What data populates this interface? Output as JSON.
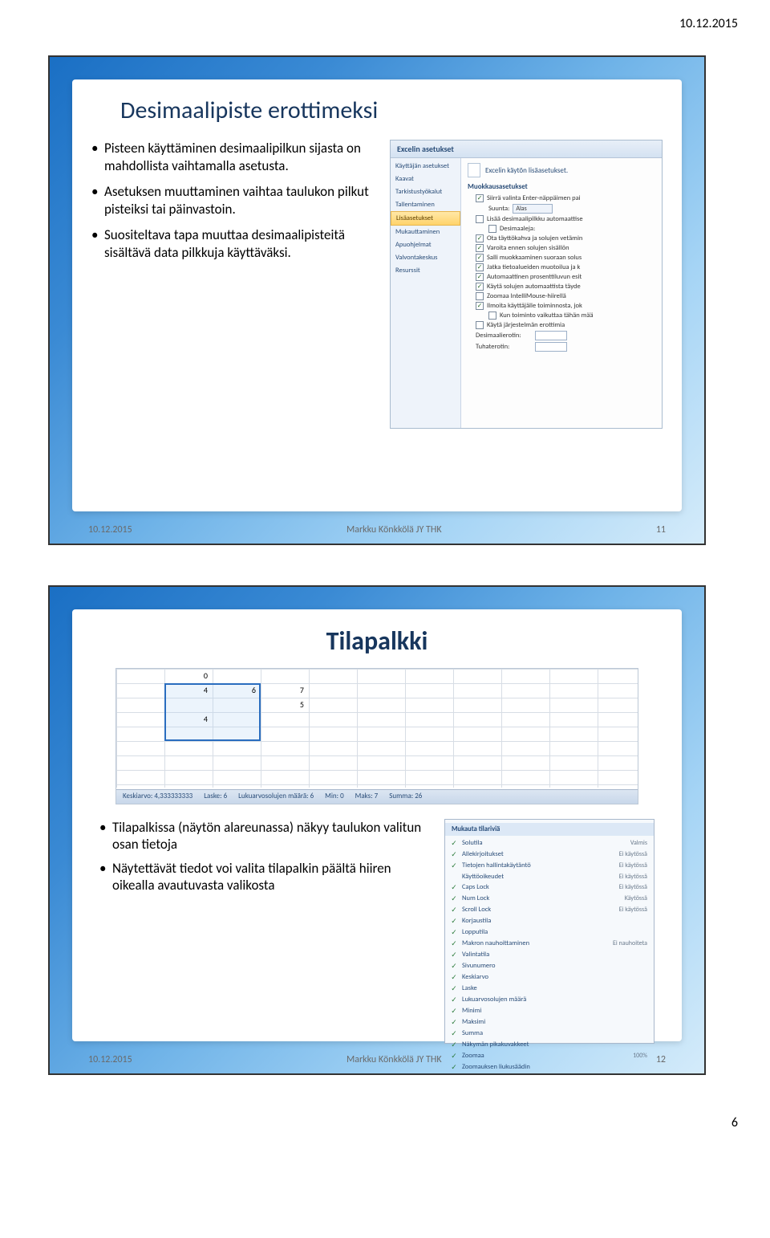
{
  "page": {
    "header_date": "10.12.2015",
    "page_number": "6"
  },
  "slide1": {
    "title": "Desimaalipiste erottimeksi",
    "bullets": [
      "Pisteen käyttäminen desimaalipilkun sijasta on mahdollista vaihtamalla asetusta.",
      "Asetuksen muuttaminen vaihtaa taulukon pilkut pisteiksi tai päinvastoin.",
      "Suositeltava tapa muuttaa desimaalipisteitä sisältävä data pilkkuja käyttäväksi."
    ],
    "footer_date": "10.12.2015",
    "footer_center": "Markku Könkkölä JY THK",
    "footer_page": "11",
    "dialog": {
      "title": "Excelin asetukset",
      "sidebar": [
        "Käyttäjän asetukset",
        "Kaavat",
        "Tarkistustyökalut",
        "Tallentaminen",
        "Lisäasetukset",
        "Mukauttaminen",
        "Apuohjelmat",
        "Valvontakeskus",
        "Resurssit"
      ],
      "selected_index": 4,
      "header_link": "Excelin käytön lisäasetukset.",
      "section": "Muokkausasetukset",
      "direction_label": "Suunta:",
      "direction_value": "Alas",
      "options": [
        {
          "checked": true,
          "label": "Siirrä valinta Enter-näppäimen pai"
        },
        {
          "checked": false,
          "label": "Lisää desimaalipilkku automaattise"
        },
        {
          "checked": false,
          "label": "Desimaaleja:",
          "indent": true
        },
        {
          "checked": true,
          "label": "Ota täyttökahva ja solujen vetämin"
        },
        {
          "checked": true,
          "label": "Varoita ennen solujen sisällön"
        },
        {
          "checked": true,
          "label": "Salli muokkaaminen suoraan solus"
        },
        {
          "checked": true,
          "label": "Jatka tietoalueiden muotoilua ja k"
        },
        {
          "checked": true,
          "label": "Automaattinen prosenttiluvun esit"
        },
        {
          "checked": true,
          "label": "Käytä solujen automaattista täyde"
        },
        {
          "checked": false,
          "label": "Zoomaa IntelliMouse-hiirellä"
        },
        {
          "checked": true,
          "label": "Ilmoita käyttäjälle toiminnosta, jok"
        },
        {
          "checked": false,
          "label": "Kun toiminto vaikuttaa tähän mää",
          "indent": true
        },
        {
          "checked": false,
          "label": "Käytä järjestelmän erottimia"
        }
      ],
      "decimal_label": "Desimaalierotin:",
      "thousand_label": "Tuhaterotin:"
    }
  },
  "slide2": {
    "title": "Tilapalkki",
    "bullets": [
      "Tilapalkissa (näytön alareunassa) näkyy taulukon valitun osan tietoja",
      "Näytettävät tiedot voi valita tilapalkin päältä hiiren oikealla avautuvasta valikosta"
    ],
    "footer_date": "10.12.2015",
    "footer_center": "Markku Könkkölä JY THK",
    "footer_page": "12",
    "spreadsheet": {
      "cells": [
        {
          "row": 0,
          "col": 1,
          "val": "0"
        },
        {
          "row": 1,
          "col": 1,
          "val": "4"
        },
        {
          "row": 1,
          "col": 2,
          "val": "6"
        },
        {
          "row": 1,
          "col": 3,
          "val": "7"
        },
        {
          "row": 2,
          "col": 3,
          "val": "5"
        },
        {
          "row": 3,
          "col": 1,
          "val": "4"
        }
      ],
      "status_items": [
        {
          "k": "Keskiarvo:",
          "v": "4,333333333"
        },
        {
          "k": "Laske:",
          "v": "6"
        },
        {
          "k": "Lukuarvosolujen määrä:",
          "v": "6"
        },
        {
          "k": "Min:",
          "v": "0"
        },
        {
          "k": "Maks:",
          "v": "7"
        },
        {
          "k": "Summa:",
          "v": "26"
        }
      ]
    },
    "menu": {
      "header": "Mukauta tilariviä",
      "items": [
        {
          "ck": true,
          "label": "Solutila",
          "val": "Valmis"
        },
        {
          "ck": true,
          "label": "Allekirjoitukset",
          "val": "Ei käytössä"
        },
        {
          "ck": true,
          "label": "Tietojen hallintakäytäntö",
          "val": "Ei käytössä"
        },
        {
          "ck": false,
          "label": "Käyttöoikeudet",
          "val": "Ei käytössä"
        },
        {
          "ck": true,
          "label": "Caps Lock",
          "val": "Ei käytössä"
        },
        {
          "ck": true,
          "label": "Num Lock",
          "val": "Käytössä"
        },
        {
          "ck": true,
          "label": "Scroll Lock",
          "val": "Ei käytössä"
        },
        {
          "ck": true,
          "label": "Korjaustila",
          "val": ""
        },
        {
          "ck": true,
          "label": "Lopputila",
          "val": ""
        },
        {
          "ck": true,
          "label": "Makron nauhoittaminen",
          "val": "Ei nauhoiteta"
        },
        {
          "ck": true,
          "label": "Valintatila",
          "val": ""
        },
        {
          "ck": true,
          "label": "Sivunumero",
          "val": ""
        },
        {
          "ck": true,
          "label": "Keskiarvo",
          "val": ""
        },
        {
          "ck": true,
          "label": "Laske",
          "val": ""
        },
        {
          "ck": true,
          "label": "Lukuarvosolujen määrä",
          "val": ""
        },
        {
          "ck": true,
          "label": "Minimi",
          "val": ""
        },
        {
          "ck": true,
          "label": "Maksimi",
          "val": ""
        },
        {
          "ck": true,
          "label": "Summa",
          "val": ""
        },
        {
          "ck": true,
          "label": "Näkymän pikakuvakkeet",
          "val": ""
        },
        {
          "ck": true,
          "label": "Zoomaa",
          "val": "100%"
        },
        {
          "ck": true,
          "label": "Zoomauksen liukusäädin",
          "val": ""
        }
      ]
    }
  }
}
